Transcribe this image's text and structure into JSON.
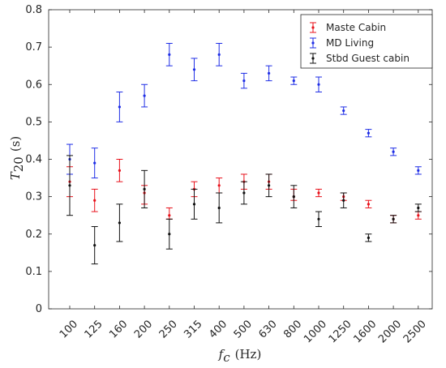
{
  "chart_data": {
    "type": "scatter",
    "xlabel": {
      "symbol": "f",
      "subscript": "c",
      "unit": "(Hz)"
    },
    "ylabel": {
      "symbol": "T",
      "subscript": "20",
      "unit": "(s)"
    },
    "categories": [
      "100",
      "125",
      "160",
      "200",
      "250",
      "315",
      "400",
      "500",
      "630",
      "800",
      "1000",
      "1250",
      "1600",
      "2000",
      "2500"
    ],
    "ylim": [
      0,
      0.8
    ],
    "yticks": [
      "0",
      "0.1",
      "0.2",
      "0.3",
      "0.4",
      "0.5",
      "0.6",
      "0.7",
      "0.8"
    ],
    "grid": false,
    "legend_position": "top-right",
    "series": [
      {
        "name": "Maste Cabin",
        "color": "#e8121b",
        "values": [
          0.34,
          0.29,
          0.37,
          0.31,
          0.25,
          0.32,
          0.33,
          0.34,
          0.34,
          0.3,
          0.31,
          0.3,
          0.28,
          0.24,
          0.25
        ],
        "lower": [
          0.3,
          0.26,
          0.34,
          0.28,
          0.24,
          0.3,
          0.31,
          0.32,
          0.32,
          0.29,
          0.3,
          0.29,
          0.27,
          0.23,
          0.24
        ],
        "upper": [
          0.38,
          0.32,
          0.4,
          0.33,
          0.27,
          0.34,
          0.35,
          0.36,
          0.36,
          0.32,
          0.32,
          0.31,
          0.29,
          0.25,
          0.26
        ]
      },
      {
        "name": "MD Living",
        "color": "#1f2ee6",
        "values": [
          0.4,
          0.39,
          0.54,
          0.57,
          0.68,
          0.64,
          0.68,
          0.61,
          0.63,
          0.61,
          0.6,
          0.53,
          0.47,
          0.42,
          0.37
        ],
        "lower": [
          0.36,
          0.35,
          0.5,
          0.54,
          0.65,
          0.61,
          0.65,
          0.59,
          0.61,
          0.6,
          0.58,
          0.52,
          0.46,
          0.41,
          0.36
        ],
        "upper": [
          0.44,
          0.43,
          0.58,
          0.6,
          0.71,
          0.67,
          0.71,
          0.63,
          0.65,
          0.62,
          0.62,
          0.54,
          0.48,
          0.43,
          0.38
        ]
      },
      {
        "name": "Stbd Guest cabin",
        "color": "#111111",
        "values": [
          0.33,
          0.17,
          0.23,
          0.32,
          0.2,
          0.28,
          0.27,
          0.31,
          0.33,
          0.3,
          0.24,
          0.29,
          0.19,
          0.24,
          0.27
        ],
        "lower": [
          0.25,
          0.12,
          0.18,
          0.27,
          0.16,
          0.24,
          0.23,
          0.28,
          0.3,
          0.27,
          0.22,
          0.27,
          0.18,
          0.23,
          0.26
        ],
        "upper": [
          0.41,
          0.22,
          0.28,
          0.37,
          0.24,
          0.32,
          0.31,
          0.34,
          0.36,
          0.33,
          0.26,
          0.31,
          0.2,
          0.25,
          0.28
        ]
      }
    ]
  }
}
